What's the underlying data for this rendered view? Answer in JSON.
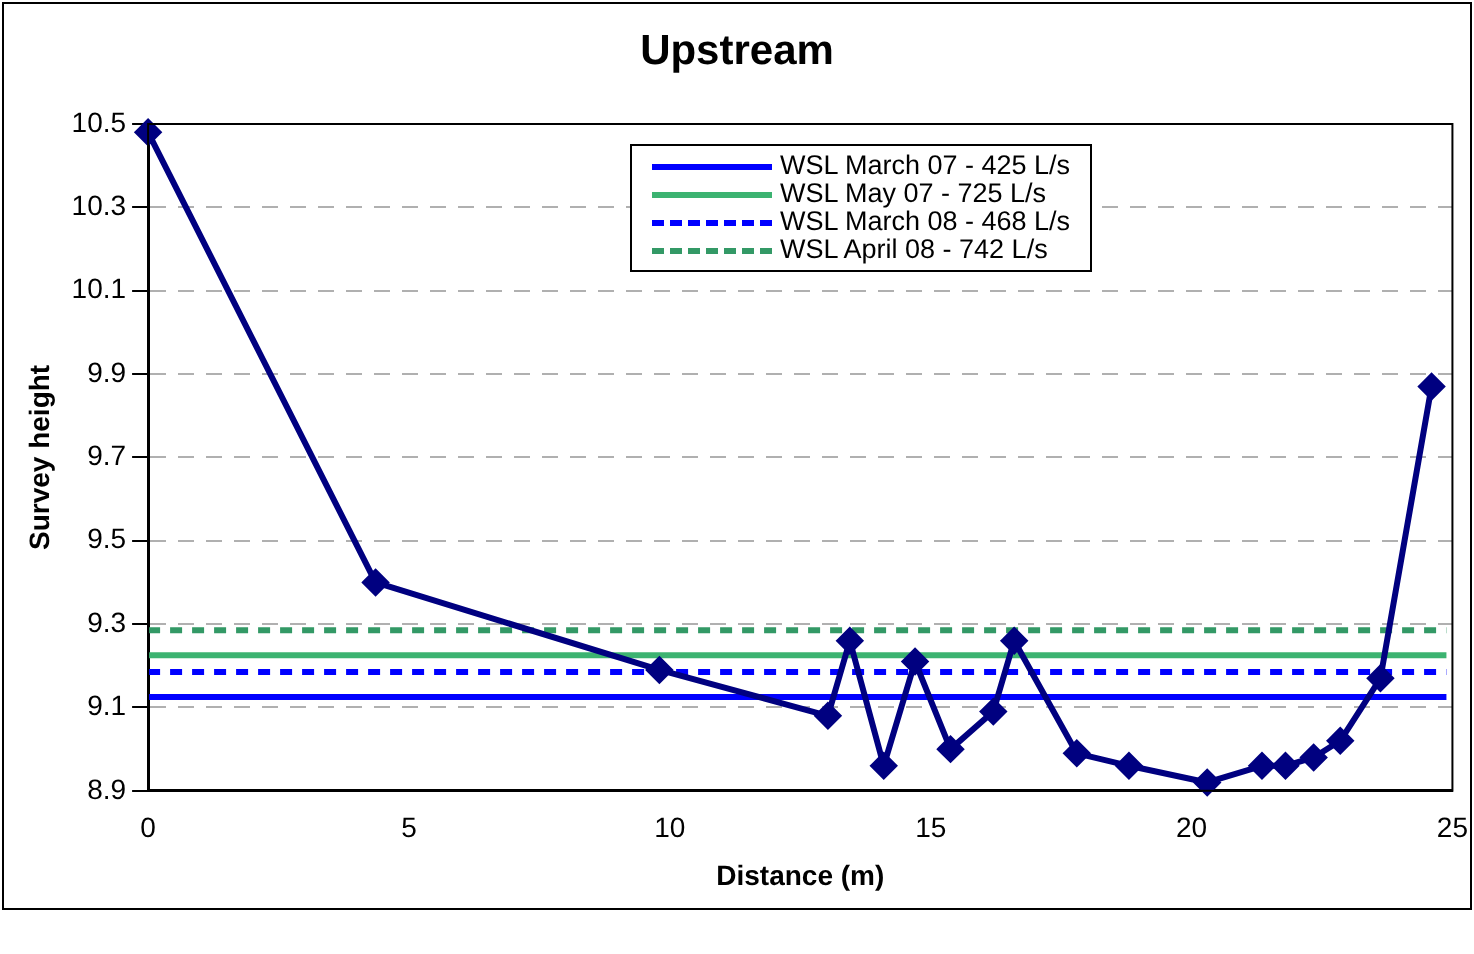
{
  "chart_data": {
    "type": "line",
    "title": "Upstream",
    "xlabel": "Distance (m)",
    "ylabel": "Survey height",
    "x": [
      0,
      4.36,
      9.8,
      13.03,
      13.45,
      14.1,
      14.7,
      15.38,
      16.2,
      16.6,
      17.8,
      18.8,
      20.3,
      21.35,
      21.8,
      22.34,
      22.85,
      23.62,
      24.6
    ],
    "series": [
      {
        "color": "#000080",
        "values": [
          10.48,
          9.4,
          9.19,
          9.08,
          9.26,
          8.96,
          9.21,
          9.0,
          9.09,
          9.26,
          8.99,
          8.96,
          8.92,
          8.96,
          8.96,
          8.98,
          9.02,
          9.17,
          9.87
        ]
      }
    ],
    "ref_lines": [
      {
        "axis": "y",
        "value": 9.125,
        "label": "WSL March 07 - 425 L/s",
        "color": "#0000ff",
        "line_style": "solid"
      },
      {
        "axis": "y",
        "value": 9.225,
        "label": "WSL May 07 - 725 L/s",
        "color": "#3cb371",
        "line_style": "solid"
      },
      {
        "axis": "y",
        "value": 9.185,
        "label": "WSL March 08 - 468 L/s",
        "color": "#0000ff",
        "line_style": "dashed"
      },
      {
        "axis": "y",
        "value": 9.285,
        "label": "WSL April 08 - 742 L/s",
        "color": "#339966",
        "line_style": "dashed"
      }
    ],
    "xlim": [
      0,
      25
    ],
    "xticks": [
      0,
      5,
      10,
      15,
      20,
      25
    ],
    "ylim": [
      8.9,
      10.5
    ],
    "yticks": [
      8.9,
      9.1,
      9.3,
      9.5,
      9.7,
      9.9,
      10.1,
      10.3,
      10.5
    ],
    "grid": "y",
    "legend": "top",
    "marker": "diamond",
    "line_style": "solid"
  }
}
